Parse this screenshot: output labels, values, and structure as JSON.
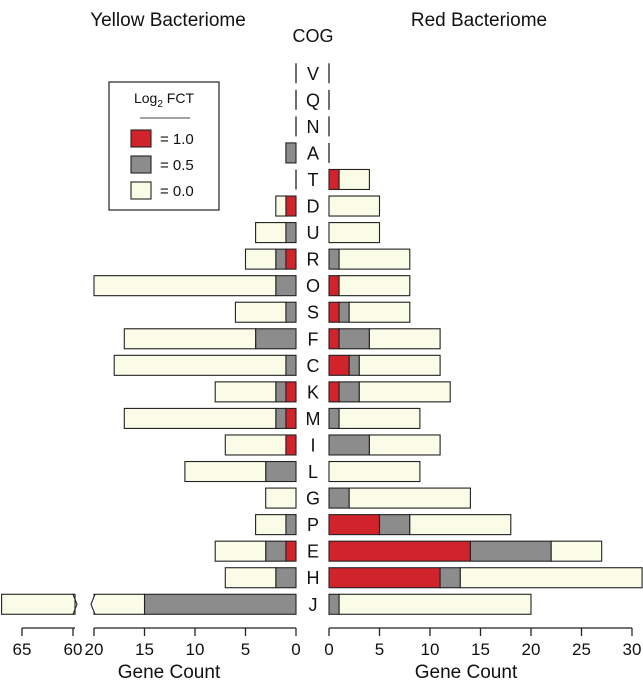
{
  "chart_data": {
    "type": "bar",
    "orientation": "horizontal",
    "layout": "butterfly (mirrored left/right panels)",
    "left_panel_title": "Yellow Bacteriome",
    "right_panel_title": "Red Bacteriome",
    "category_header": "COG",
    "xlabel_left": "Gene Count",
    "xlabel_right": "Gene Count",
    "left_axis": {
      "ticks": [
        20,
        15,
        10,
        5,
        0
      ],
      "xlim": [
        20,
        0
      ],
      "broken_segment": {
        "ticks": [
          65,
          60
        ],
        "note": "axis break between 60 and 20"
      }
    },
    "right_axis": {
      "ticks": [
        0,
        5,
        10,
        15,
        20,
        25,
        30
      ],
      "xlim": [
        0,
        31
      ]
    },
    "legend": {
      "title_main": "Log",
      "title_sub": "2",
      "title_rest": " FCT",
      "placement": "upper-left of left panel",
      "items": [
        {
          "label": "= 1.0",
          "color": "#d0232b"
        },
        {
          "label": "= 0.5",
          "color": "#8c8c8c"
        },
        {
          "label": "= 0.0",
          "color": "#fbfce8"
        }
      ]
    },
    "stack_order": [
      "= 1.0",
      "= 0.5",
      "= 0.0"
    ],
    "categories": [
      "V",
      "Q",
      "N",
      "A",
      "T",
      "D",
      "U",
      "R",
      "O",
      "S",
      "F",
      "C",
      "K",
      "M",
      "I",
      "L",
      "G",
      "P",
      "E",
      "H",
      "J"
    ],
    "yellow": [
      [
        0,
        0,
        0
      ],
      [
        0,
        0,
        0
      ],
      [
        0,
        0,
        0
      ],
      [
        0,
        1,
        0
      ],
      [
        0,
        0,
        0
      ],
      [
        1,
        0,
        1
      ],
      [
        0,
        1,
        3
      ],
      [
        1,
        1,
        3
      ],
      [
        0,
        2,
        18
      ],
      [
        0,
        1,
        5
      ],
      [
        0,
        4,
        13
      ],
      [
        0,
        1,
        17
      ],
      [
        1,
        1,
        6
      ],
      [
        1,
        1,
        15
      ],
      [
        1,
        0,
        6
      ],
      [
        0,
        3,
        8
      ],
      [
        0,
        0,
        3
      ],
      [
        0,
        1,
        3
      ],
      [
        1,
        2,
        5
      ],
      [
        0,
        2,
        5
      ],
      [
        0,
        15,
        52
      ]
    ],
    "red": [
      [
        0,
        0,
        0
      ],
      [
        0,
        0,
        0
      ],
      [
        0,
        0,
        0
      ],
      [
        0,
        0,
        0
      ],
      [
        1,
        0,
        3
      ],
      [
        0,
        0,
        5
      ],
      [
        0,
        0,
        5
      ],
      [
        0,
        1,
        7
      ],
      [
        1,
        0,
        7
      ],
      [
        1,
        1,
        6
      ],
      [
        1,
        3,
        7
      ],
      [
        2,
        1,
        8
      ],
      [
        1,
        2,
        9
      ],
      [
        0,
        1,
        8
      ],
      [
        0,
        4,
        7
      ],
      [
        0,
        0,
        9
      ],
      [
        0,
        2,
        12
      ],
      [
        5,
        3,
        10
      ],
      [
        14,
        8,
        5
      ],
      [
        11,
        2,
        18
      ],
      [
        0,
        1,
        19
      ]
    ]
  }
}
